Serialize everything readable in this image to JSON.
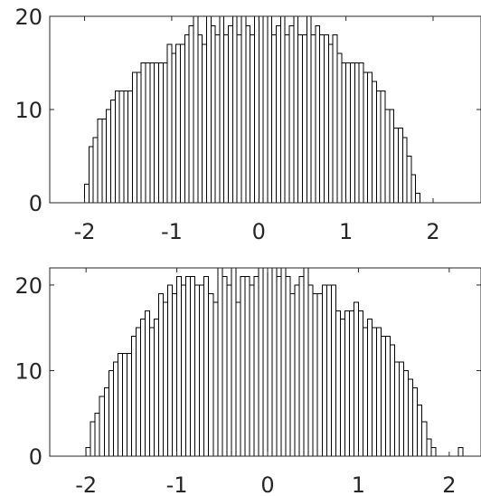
{
  "chart_data": [
    {
      "type": "bar",
      "title": "",
      "xlabel": "",
      "ylabel": "",
      "xlim": [
        -2.4,
        2.55
      ],
      "ylim": [
        0,
        20
      ],
      "bin_width": 0.05,
      "bin_start": -2.0,
      "xticks": [
        -2,
        -1,
        0,
        1,
        2
      ],
      "xtick_labels": [
        "-2",
        "-1",
        "0",
        "1",
        "2"
      ],
      "yticks": [
        0,
        10,
        20
      ],
      "ytick_labels": [
        "0",
        "10",
        "20"
      ],
      "grid": false,
      "values": [
        2,
        6,
        7,
        9,
        9,
        10,
        11,
        12,
        12,
        12,
        12,
        14,
        14,
        15,
        15,
        15,
        15,
        15,
        15,
        17,
        16,
        17,
        17,
        18,
        19,
        20,
        18,
        17,
        20,
        19,
        18,
        20,
        18,
        19,
        20,
        18,
        20,
        19,
        18,
        20,
        20,
        20,
        20,
        18,
        19,
        20,
        18,
        19,
        20,
        18,
        18,
        20,
        18,
        19,
        18,
        18,
        17,
        18,
        16,
        15,
        15,
        15,
        15,
        15,
        14,
        14,
        13,
        12,
        12,
        10,
        10,
        8,
        8,
        7,
        5,
        3,
        1
      ]
    },
    {
      "type": "bar",
      "title": "",
      "xlabel": "",
      "ylabel": "",
      "xlim": [
        -2.4,
        2.35
      ],
      "ylim": [
        0,
        22
      ],
      "bin_width": 0.05,
      "bin_start": -2.0,
      "xticks": [
        -2,
        -1,
        0,
        1,
        2
      ],
      "xtick_labels": [
        "-2",
        "-1",
        "0",
        "1",
        "2"
      ],
      "yticks": [
        0,
        10,
        20
      ],
      "ytick_labels": [
        "0",
        "10",
        "20"
      ],
      "grid": false,
      "values": [
        1,
        4,
        5,
        7,
        8,
        10,
        11,
        12,
        12,
        12,
        14,
        15,
        16,
        17,
        15,
        16,
        19,
        18,
        20,
        19,
        21,
        20,
        21,
        21,
        20,
        20,
        21,
        19,
        18,
        22,
        21,
        20,
        22,
        18,
        21,
        21,
        20,
        21,
        22,
        22,
        22,
        22,
        21,
        22,
        21,
        19,
        20,
        21,
        22,
        20,
        19,
        19,
        20,
        20,
        20,
        17,
        16,
        17,
        17,
        18,
        17,
        15,
        16,
        15,
        15,
        14,
        14,
        13,
        11,
        11,
        10,
        9,
        8,
        6,
        4,
        2,
        1,
        0,
        0,
        0,
        0,
        0,
        1
      ]
    }
  ]
}
